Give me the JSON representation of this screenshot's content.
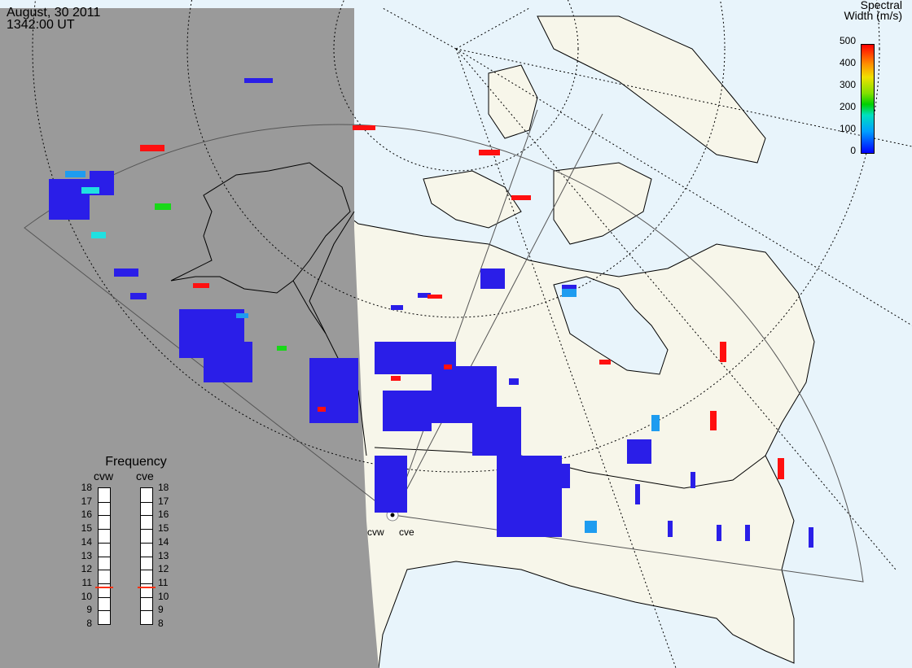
{
  "header": {
    "date": "August, 30 2011",
    "time": "1342:00 UT"
  },
  "legend": {
    "title_line1": "Spectral",
    "title_line2": "Width (m/s)",
    "ticks": [
      "500",
      "400",
      "300",
      "200",
      "100",
      "0"
    ],
    "colors": {
      "low": "#0000ff",
      "mid_low": "#00a0ff",
      "mid": "#00d000",
      "mid_high": "#f0e000",
      "high": "#ff0000"
    }
  },
  "frequency": {
    "title": "Frequency",
    "radars": [
      {
        "name": "cvw",
        "selected_mhz": 10.7
      },
      {
        "name": "cve",
        "selected_mhz": 10.7
      }
    ],
    "scale": [
      "18",
      "17",
      "16",
      "15",
      "14",
      "13",
      "12",
      "11",
      "10",
      "9",
      "8"
    ]
  },
  "map": {
    "radar_site_labels": [
      "cvw",
      "cve"
    ],
    "night_shade_color": "#9a9a9a",
    "land_color": "#f7f6ea",
    "ocean_color": "#e8f4fb"
  }
}
